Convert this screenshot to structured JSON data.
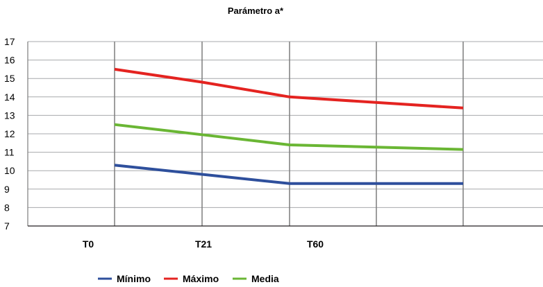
{
  "chart_data": {
    "type": "line",
    "title": "Parámetro a*",
    "xlabel": "",
    "ylabel": "",
    "categories": [
      "T0",
      "T21",
      "T60",
      ""
    ],
    "xtick_labels": [
      "T0",
      "T21",
      "T60"
    ],
    "ylim": [
      7,
      17
    ],
    "yticks": [
      7,
      8,
      9,
      10,
      11,
      12,
      13,
      14,
      15,
      16,
      17
    ],
    "grid": true,
    "legend_position": "bottom-center",
    "series": [
      {
        "name": "Mínimo",
        "color": "#2e4f9c",
        "values": [
          10.3,
          9.8,
          9.3,
          9.3
        ]
      },
      {
        "name": "Máximo",
        "color": "#e42320",
        "values": [
          15.5,
          14.8,
          14.0,
          13.4
        ]
      },
      {
        "name": "Media",
        "color": "#6ab634",
        "values": [
          12.5,
          11.95,
          11.4,
          11.15
        ]
      }
    ]
  }
}
